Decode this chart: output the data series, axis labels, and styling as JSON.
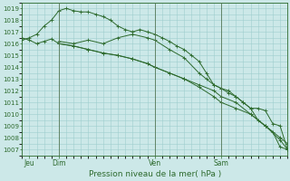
{
  "title": "Pression niveau de la mer( hPa )",
  "bg_color": "#cce8e8",
  "grid_color": "#9ecece",
  "line_color": "#2d6a2d",
  "ylim": [
    1006.5,
    1019.5
  ],
  "yticks": [
    1007,
    1008,
    1009,
    1010,
    1011,
    1012,
    1013,
    1014,
    1015,
    1016,
    1017,
    1018,
    1019
  ],
  "xlim": [
    0,
    144
  ],
  "xtick_positions": [
    4,
    20,
    72,
    108,
    132
  ],
  "xtick_labels": [
    "Jeu",
    "Dim",
    "Ven",
    "Sam",
    ""
  ],
  "vlines": [
    20,
    72,
    108
  ],
  "series1_x": [
    0,
    4,
    8,
    12,
    16,
    20,
    28,
    36,
    44,
    52,
    60,
    68,
    72,
    80,
    88,
    96,
    104,
    108,
    116,
    124,
    132,
    140,
    144
  ],
  "series1_y": [
    1016.5,
    1016.3,
    1016.0,
    1016.2,
    1016.4,
    1016.0,
    1015.8,
    1015.5,
    1015.2,
    1015.0,
    1014.7,
    1014.3,
    1014.0,
    1013.5,
    1013.0,
    1012.5,
    1012.0,
    1011.5,
    1011.0,
    1010.0,
    1009.0,
    1008.0,
    1007.5
  ],
  "series2_x": [
    0,
    4,
    8,
    12,
    16,
    20,
    24,
    28,
    32,
    36,
    40,
    44,
    48,
    52,
    56,
    60,
    64,
    68,
    72,
    76,
    80,
    84,
    88,
    92,
    96,
    100,
    104,
    108,
    112,
    116,
    120,
    124,
    128,
    132,
    136,
    140,
    144
  ],
  "series2_y": [
    1016.3,
    1016.5,
    1016.8,
    1017.5,
    1018.0,
    1018.8,
    1019.0,
    1018.8,
    1018.7,
    1018.7,
    1018.5,
    1018.3,
    1018.0,
    1017.5,
    1017.2,
    1017.0,
    1017.2,
    1017.0,
    1016.8,
    1016.5,
    1016.2,
    1015.8,
    1015.5,
    1015.0,
    1014.5,
    1013.5,
    1012.5,
    1012.2,
    1011.8,
    1011.5,
    1011.0,
    1010.5,
    1010.5,
    1010.3,
    1009.2,
    1009.0,
    1007.0
  ],
  "series3_x": [
    20,
    28,
    36,
    44,
    52,
    60,
    68,
    72,
    80,
    88,
    96,
    104,
    108,
    116,
    124,
    132,
    140,
    144
  ],
  "series3_y": [
    1016.0,
    1015.8,
    1015.5,
    1015.2,
    1015.0,
    1014.7,
    1014.3,
    1014.0,
    1013.5,
    1013.0,
    1012.3,
    1011.5,
    1011.0,
    1010.5,
    1010.0,
    1009.0,
    1007.8,
    1007.0
  ],
  "series4_x": [
    20,
    28,
    36,
    44,
    52,
    60,
    68,
    72,
    80,
    88,
    96,
    100,
    104,
    108,
    112,
    116,
    120,
    124,
    128,
    132,
    136,
    140,
    144
  ],
  "series4_y": [
    1016.2,
    1016.0,
    1016.3,
    1016.0,
    1016.5,
    1016.8,
    1016.5,
    1016.3,
    1015.5,
    1014.8,
    1013.5,
    1013.0,
    1012.5,
    1012.2,
    1012.0,
    1011.5,
    1011.0,
    1010.5,
    1009.5,
    1009.0,
    1008.5,
    1007.2,
    1007.0
  ]
}
